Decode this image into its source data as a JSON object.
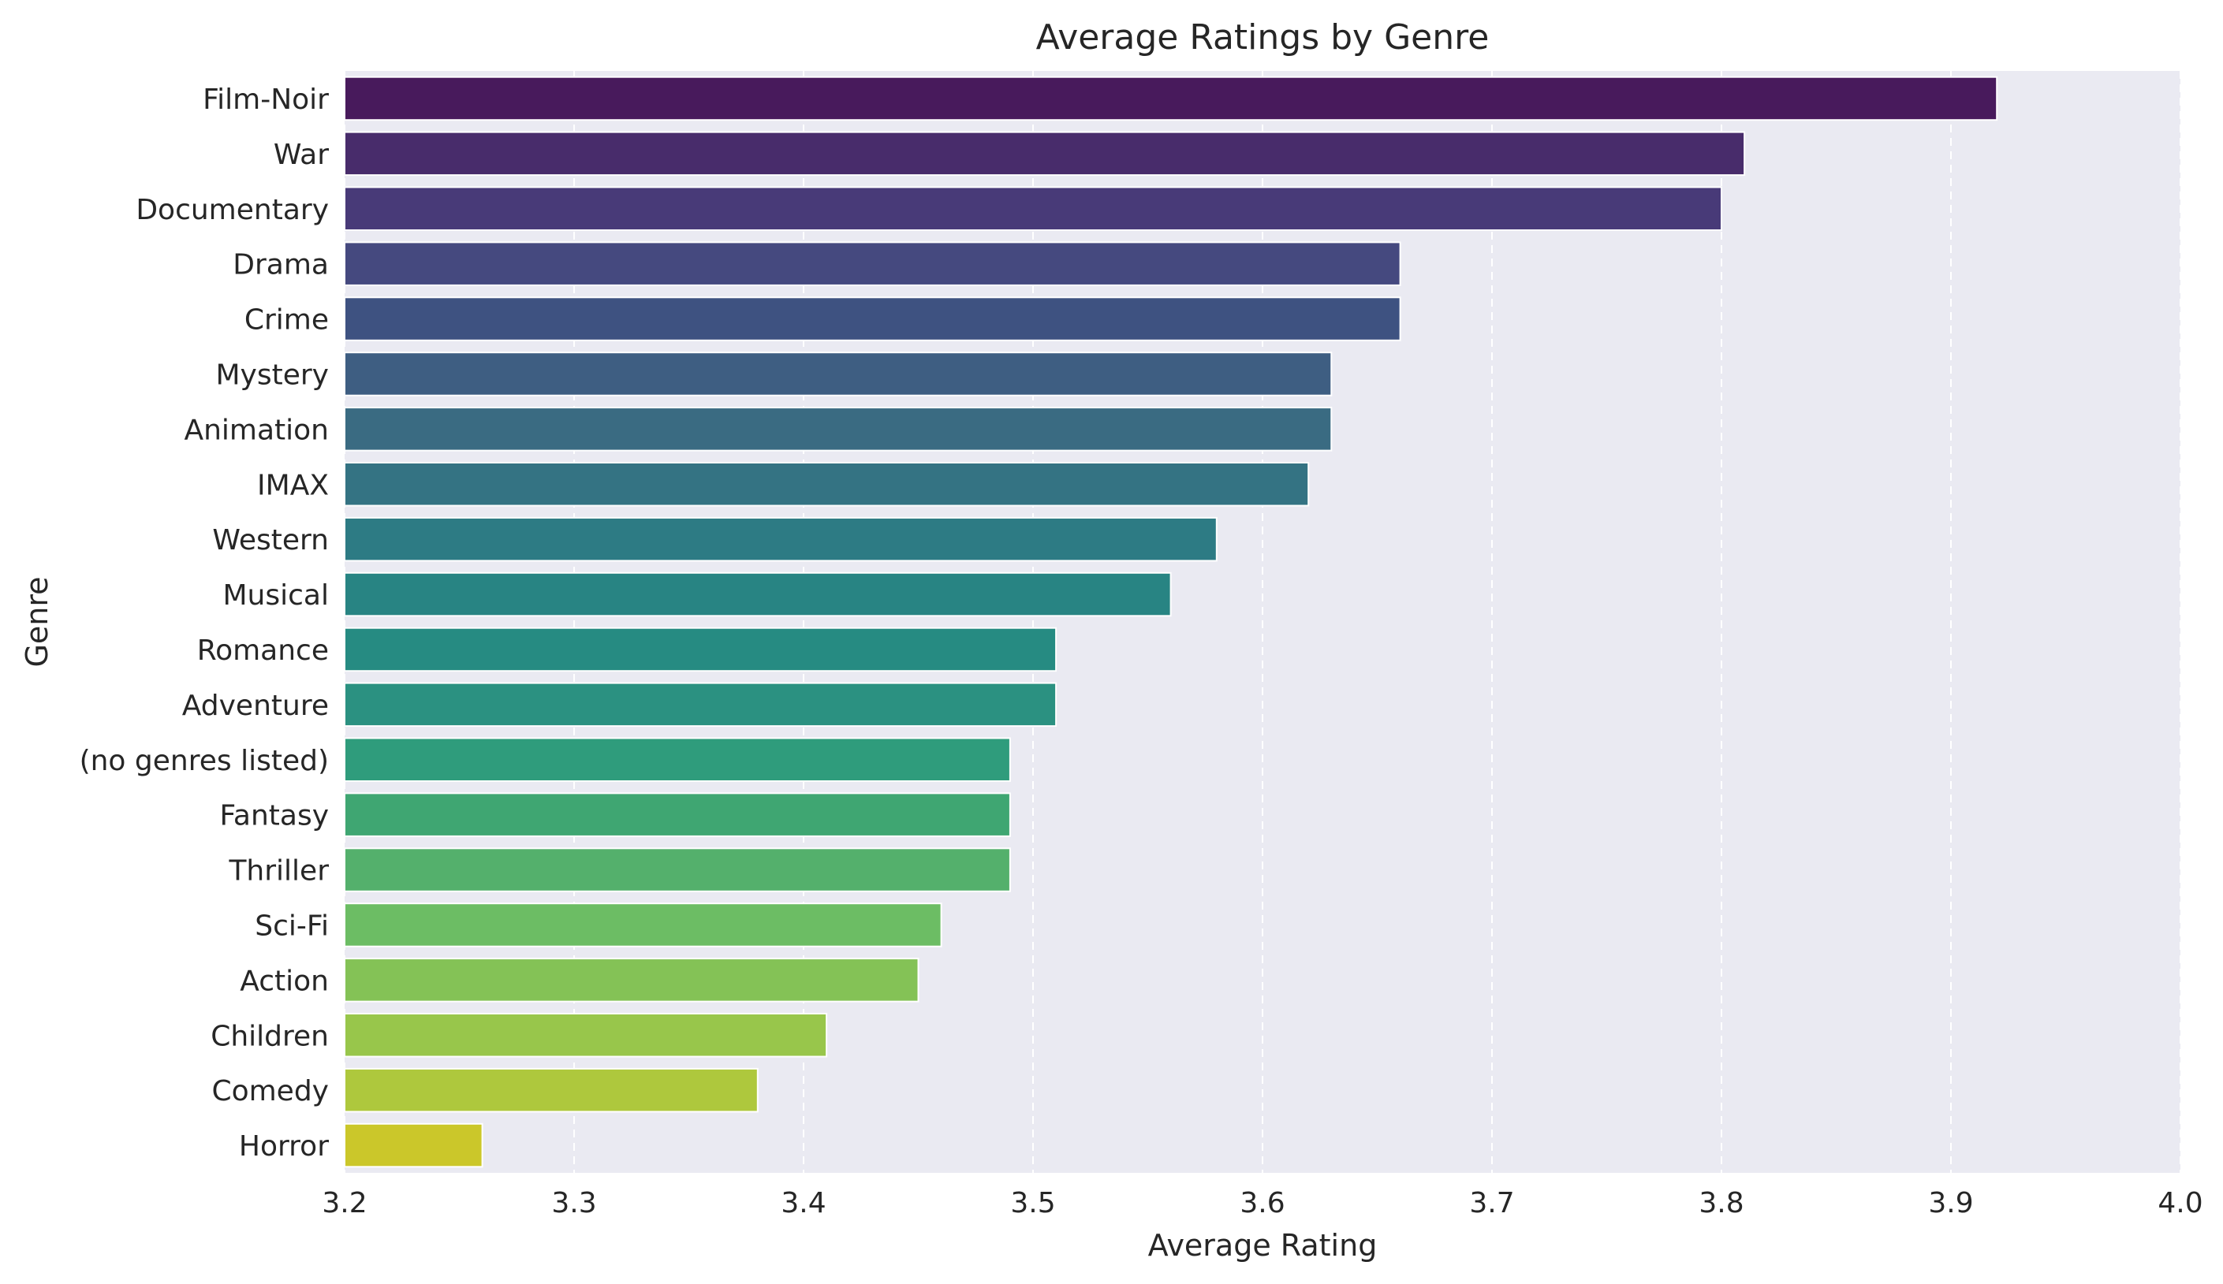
{
  "chart_data": {
    "type": "bar",
    "orientation": "horizontal",
    "title": "Average Ratings by Genre",
    "xlabel": "Average Rating",
    "ylabel": "Genre",
    "xlim": [
      3.2,
      4.0
    ],
    "xticks": [
      "3.2",
      "3.3",
      "3.4",
      "3.5",
      "3.6",
      "3.7",
      "3.8",
      "3.9",
      "4.0"
    ],
    "grid": "vertical dashed",
    "background": "#eaeaf2",
    "palette": "viridis",
    "categories": [
      "Film-Noir",
      "War",
      "Documentary",
      "Drama",
      "Crime",
      "Mystery",
      "Animation",
      "IMAX",
      "Western",
      "Musical",
      "Romance",
      "Adventure",
      "(no genres listed)",
      "Fantasy",
      "Thriller",
      "Sci-Fi",
      "Action",
      "Children",
      "Comedy",
      "Horror"
    ],
    "values": [
      3.92,
      3.81,
      3.8,
      3.66,
      3.66,
      3.63,
      3.63,
      3.62,
      3.58,
      3.56,
      3.51,
      3.51,
      3.49,
      3.49,
      3.49,
      3.46,
      3.45,
      3.41,
      3.38,
      3.26
    ],
    "colors": [
      "#481a5c",
      "#482c6b",
      "#483a78",
      "#45497f",
      "#3e5281",
      "#3e5e82",
      "#3a6b82",
      "#347383",
      "#2d7b84",
      "#288483",
      "#268b82",
      "#2b9181",
      "#2f9c7c",
      "#3fa672",
      "#54b06c",
      "#6cbd64",
      "#84c256",
      "#98c64b",
      "#aec83d",
      "#cbc72a"
    ]
  }
}
